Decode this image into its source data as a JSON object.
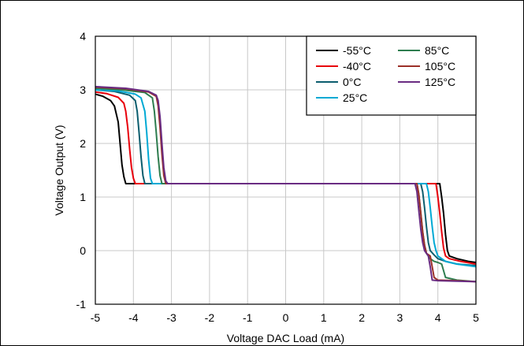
{
  "chart_data": {
    "type": "line",
    "title": "",
    "xlabel": "Voltage DAC Load (mA)",
    "ylabel": "Voltage Output (V)",
    "xlim": [
      -5,
      5
    ],
    "ylim": [
      -1,
      4
    ],
    "x_ticks": [
      -5,
      -4,
      -3,
      -2,
      -1,
      0,
      1,
      2,
      3,
      4,
      5
    ],
    "y_ticks": [
      -1,
      0,
      1,
      2,
      3,
      4
    ],
    "grid": true,
    "legend_position": "top-right",
    "series": [
      {
        "name": "-55°C",
        "color": "#000000",
        "x": [
          -5,
          -4.8,
          -4.6,
          -4.5,
          -4.4,
          -4.35,
          -4.3,
          -4.25,
          -4.2,
          3.9,
          4.05,
          4.1,
          4.15,
          4.2,
          4.25,
          4.3,
          4.5,
          4.8,
          5
        ],
        "y": [
          2.92,
          2.88,
          2.8,
          2.7,
          2.4,
          2.0,
          1.6,
          1.38,
          1.25,
          1.25,
          1.25,
          1.0,
          0.7,
          0.3,
          0.0,
          -0.1,
          -0.15,
          -0.2,
          -0.22
        ]
      },
      {
        "name": "-40°C",
        "color": "#e8000b",
        "x": [
          -5,
          -4.7,
          -4.4,
          -4.25,
          -4.2,
          -4.15,
          -4.1,
          -4.05,
          -4.0,
          -3.95,
          3.95,
          4.0,
          4.05,
          4.1,
          4.15,
          4.2,
          4.3,
          4.6,
          5
        ],
        "y": [
          2.96,
          2.93,
          2.86,
          2.75,
          2.6,
          2.3,
          1.9,
          1.55,
          1.35,
          1.25,
          1.25,
          1.0,
          0.7,
          0.35,
          0.05,
          -0.1,
          -0.15,
          -0.2,
          -0.25
        ]
      },
      {
        "name": "0°C",
        "color": "#0b5d6e",
        "x": [
          -5,
          -4.5,
          -4.1,
          -3.95,
          -3.9,
          -3.85,
          -3.8,
          -3.75,
          -3.7,
          3.55,
          3.6,
          3.65,
          3.7,
          3.75,
          3.8,
          3.9,
          4.0,
          4.2,
          4.5,
          5
        ],
        "y": [
          3.0,
          2.97,
          2.9,
          2.8,
          2.6,
          2.2,
          1.75,
          1.4,
          1.25,
          1.25,
          1.1,
          0.8,
          0.45,
          0.15,
          0.0,
          -0.08,
          -0.15,
          -0.2,
          -0.25,
          -0.28
        ]
      },
      {
        "name": "25°C",
        "color": "#00a9d4",
        "x": [
          -5,
          -4.4,
          -3.95,
          -3.8,
          -3.7,
          -3.65,
          -3.6,
          -3.55,
          -3.5,
          3.7,
          3.75,
          3.8,
          3.85,
          3.9,
          3.95,
          4.0,
          4.2,
          4.5,
          5
        ],
        "y": [
          3.0,
          2.98,
          2.92,
          2.85,
          2.6,
          2.2,
          1.7,
          1.35,
          1.25,
          1.25,
          1.1,
          0.8,
          0.45,
          0.15,
          0.0,
          -0.1,
          -0.2,
          -0.25,
          -0.3
        ]
      },
      {
        "name": "85°C",
        "color": "#2e7d4f",
        "x": [
          -5,
          -4.3,
          -3.7,
          -3.5,
          -3.45,
          -3.4,
          -3.35,
          -3.3,
          -3.25,
          3.45,
          3.5,
          3.55,
          3.6,
          3.65,
          3.7,
          3.8,
          3.9,
          4.0,
          4.1,
          4.2,
          4.5,
          5
        ],
        "y": [
          3.03,
          3.0,
          2.95,
          2.85,
          2.6,
          2.2,
          1.75,
          1.4,
          1.25,
          1.25,
          1.05,
          0.7,
          0.35,
          0.1,
          -0.05,
          -0.15,
          -0.2,
          -0.22,
          -0.25,
          -0.5,
          -0.55,
          -0.58
        ]
      },
      {
        "name": "105°C",
        "color": "#9b3028",
        "x": [
          -5,
          -4.2,
          -3.6,
          -3.4,
          -3.35,
          -3.3,
          -3.25,
          -3.2,
          -3.15,
          3.45,
          3.5,
          3.55,
          3.6,
          3.65,
          3.7,
          3.8,
          3.85,
          3.9,
          4.0,
          4.5,
          5
        ],
        "y": [
          3.05,
          3.02,
          2.96,
          2.88,
          2.7,
          2.3,
          1.8,
          1.4,
          1.25,
          1.25,
          1.05,
          0.7,
          0.35,
          0.1,
          -0.05,
          -0.1,
          -0.3,
          -0.5,
          -0.55,
          -0.56,
          -0.58
        ]
      },
      {
        "name": "125°C",
        "color": "#6a2c82",
        "x": [
          -5,
          -4.2,
          -3.6,
          -3.4,
          -3.35,
          -3.3,
          -3.25,
          -3.2,
          -3.15,
          -3.1,
          3.4,
          3.45,
          3.5,
          3.55,
          3.6,
          3.65,
          3.7,
          3.75,
          3.8,
          3.85,
          4.0,
          4.5,
          5
        ],
        "y": [
          3.06,
          3.03,
          2.97,
          2.9,
          2.8,
          2.5,
          2.0,
          1.55,
          1.3,
          1.25,
          1.25,
          1.1,
          0.75,
          0.4,
          0.15,
          0.0,
          -0.05,
          -0.1,
          -0.3,
          -0.55,
          -0.56,
          -0.57,
          -0.58
        ]
      }
    ]
  }
}
